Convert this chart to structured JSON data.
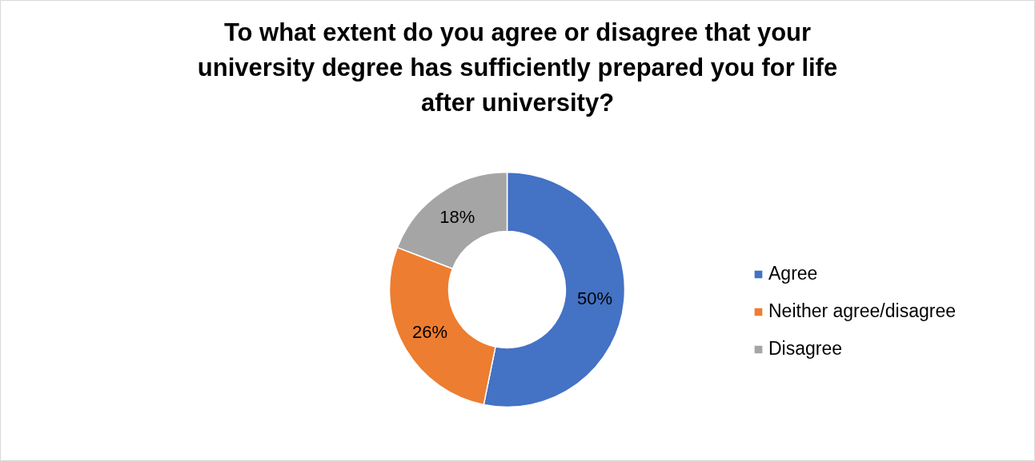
{
  "chart_data": {
    "type": "donut",
    "title": "To what extent do you agree or disagree that your university degree has sufficiently prepared you for life after university?",
    "categories": [
      "Agree",
      "Neither agree/disagree",
      "Disagree"
    ],
    "values": [
      50,
      26,
      18
    ],
    "value_labels": [
      "50%",
      "26%",
      "18%"
    ],
    "colors": [
      "#4472c4",
      "#ed7d31",
      "#a5a5a5"
    ],
    "legend": "right"
  }
}
